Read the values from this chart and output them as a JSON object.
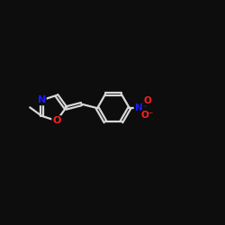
{
  "bg_color": "#0d0d0d",
  "bond_color": "#d8d8d8",
  "bond_width": 1.6,
  "atom_colors": {
    "O": "#ff2020",
    "N": "#1a1aff"
  },
  "fig_size": [
    2.5,
    2.5
  ],
  "dpi": 100,
  "xlim": [
    0,
    10
  ],
  "ylim": [
    0,
    10
  ]
}
